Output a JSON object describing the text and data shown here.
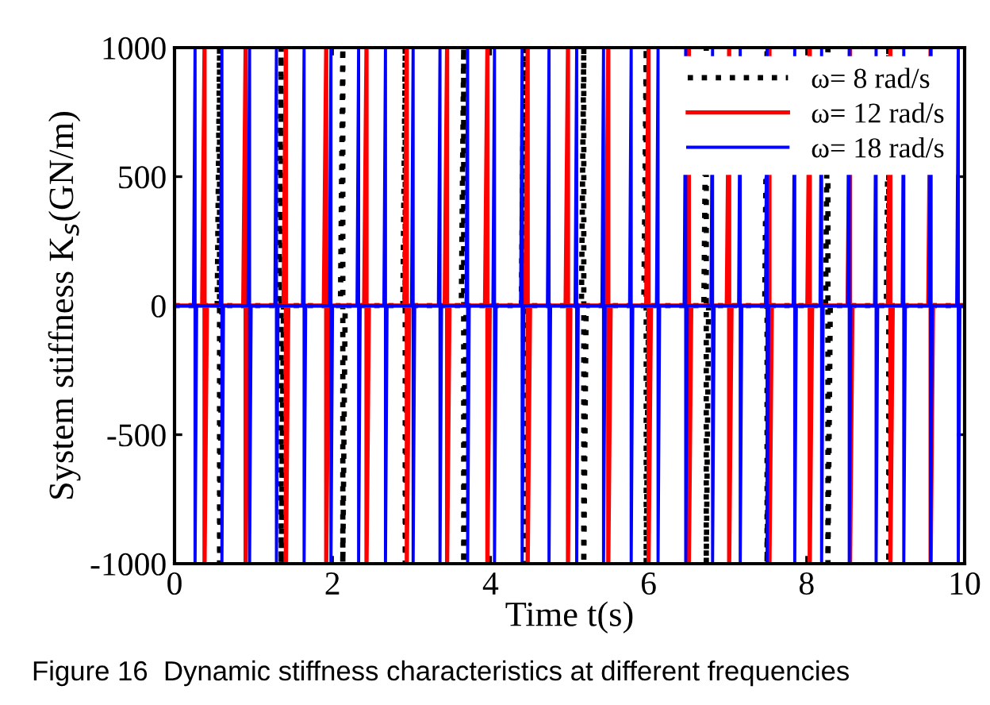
{
  "chart_data": {
    "type": "line",
    "xlabel": "Time t(s)",
    "ylabel": "System stiffness K$_{s}$(GN/m)",
    "xlim": [
      0,
      10
    ],
    "xticks": [
      0,
      2,
      4,
      6,
      8,
      10
    ],
    "ylim": [
      -1000,
      1000
    ],
    "yticks": [
      -1000,
      -500,
      0,
      500,
      1000
    ],
    "grid": false,
    "legend": "top right",
    "marker": "none",
    "annotations": [
      "Figure 16  Dynamic stiffness characteristics at different frequencies"
    ],
    "series": [
      {
        "name": "ω= 8 rad/s",
        "color": "#000000",
        "line_style": "dotted",
        "x": [
          0,
          0.54,
          0.57,
          0.57,
          0.6,
          1.32,
          1.35,
          1.35,
          1.38,
          2.1,
          2.13,
          2.13,
          2.16,
          2.89,
          2.92,
          2.92,
          2.95,
          3.63,
          3.66,
          3.66,
          3.69,
          4.39,
          4.42,
          4.42,
          4.45,
          5.15,
          5.18,
          5.18,
          5.21,
          5.94,
          5.97,
          5.97,
          6.0,
          6.7,
          6.73,
          6.73,
          6.76,
          7.47,
          7.5,
          7.5,
          7.53,
          8.24,
          8.27,
          8.27,
          8.3,
          9.01,
          9.04,
          9.04,
          9.07,
          10
        ],
        "values": [
          0,
          0,
          1000,
          -1000,
          0,
          0,
          1000,
          -1000,
          0,
          0,
          1000,
          -1000,
          0,
          0,
          1000,
          -1000,
          0,
          0,
          1000,
          -1000,
          0,
          0,
          1000,
          -1000,
          0,
          0,
          1000,
          -1000,
          0,
          0,
          1000,
          -1000,
          0,
          0,
          1000,
          -1000,
          0,
          0,
          1000,
          -1000,
          0,
          0,
          1000,
          -1000,
          0,
          0,
          1000,
          -1000,
          0,
          0
        ]
      },
      {
        "name": "ω= 12 rad/s",
        "color": "#ff0000",
        "line_style": "solid",
        "x": [
          0,
          0.35,
          0.38,
          0.38,
          0.41,
          0.87,
          0.9,
          0.9,
          0.93,
          1.38,
          1.41,
          1.41,
          1.44,
          1.89,
          1.92,
          1.92,
          1.95,
          2.4,
          2.43,
          2.43,
          2.46,
          2.91,
          2.94,
          2.94,
          2.97,
          3.42,
          3.45,
          3.45,
          3.48,
          3.93,
          3.96,
          3.96,
          3.99,
          4.44,
          4.47,
          4.47,
          4.5,
          4.95,
          4.98,
          4.98,
          5.01,
          5.46,
          5.49,
          5.49,
          5.52,
          5.97,
          6.0,
          6.0,
          6.03,
          6.48,
          6.51,
          6.51,
          6.54,
          6.99,
          7.02,
          7.02,
          7.05,
          7.5,
          7.53,
          7.53,
          7.56,
          8.01,
          8.04,
          8.04,
          8.07,
          8.52,
          8.55,
          8.55,
          8.58,
          9.03,
          9.06,
          9.06,
          9.09,
          9.54,
          9.57,
          9.57,
          9.6,
          10
        ],
        "values": [
          0,
          0,
          1000,
          -1000,
          0,
          0,
          1000,
          -1000,
          0,
          0,
          1000,
          -1000,
          0,
          0,
          1000,
          -1000,
          0,
          0,
          1000,
          -1000,
          0,
          0,
          1000,
          -1000,
          0,
          0,
          1000,
          -1000,
          0,
          0,
          1000,
          -1000,
          0,
          0,
          1000,
          -1000,
          0,
          0,
          1000,
          -1000,
          0,
          0,
          1000,
          -1000,
          0,
          0,
          1000,
          -1000,
          0,
          0,
          1000,
          -1000,
          0,
          0,
          1000,
          -1000,
          0,
          0,
          1000,
          -1000,
          0,
          0,
          1000,
          -1000,
          0,
          0,
          1000,
          -1000,
          0,
          0,
          1000,
          -1000,
          0,
          0,
          1000,
          -1000,
          0,
          0
        ]
      },
      {
        "name": "ω= 18 rad/s",
        "color": "#0000ff",
        "line_style": "solid",
        "x": [
          0,
          0.24,
          0.26,
          0.26,
          0.28,
          0.58,
          0.6,
          0.6,
          0.62,
          0.93,
          0.95,
          0.95,
          0.97,
          1.27,
          1.29,
          1.29,
          1.31,
          1.62,
          1.64,
          1.64,
          1.66,
          1.96,
          1.98,
          1.98,
          2.0,
          2.31,
          2.33,
          2.33,
          2.35,
          2.65,
          2.67,
          2.67,
          2.69,
          3.0,
          3.02,
          3.02,
          3.04,
          3.34,
          3.36,
          3.36,
          3.38,
          3.69,
          3.71,
          3.71,
          3.73,
          4.03,
          4.05,
          4.05,
          4.07,
          4.38,
          4.4,
          4.4,
          4.42,
          4.72,
          4.74,
          4.74,
          4.76,
          5.07,
          5.09,
          5.09,
          5.11,
          5.41,
          5.43,
          5.43,
          5.45,
          5.76,
          5.78,
          5.78,
          5.8,
          6.1,
          6.12,
          6.12,
          6.14,
          6.45,
          6.47,
          6.47,
          6.49,
          6.79,
          6.81,
          6.81,
          6.83,
          7.14,
          7.16,
          7.16,
          7.18,
          7.48,
          7.5,
          7.5,
          7.52,
          7.83,
          7.85,
          7.85,
          7.87,
          8.17,
          8.19,
          8.19,
          8.21,
          8.52,
          8.54,
          8.54,
          8.56,
          8.86,
          8.88,
          8.88,
          8.9,
          9.21,
          9.23,
          9.23,
          9.25,
          9.55,
          9.57,
          9.57,
          9.59,
          9.9,
          9.92,
          9.92,
          9.94,
          10
        ],
        "values": [
          0,
          0,
          1000,
          -1000,
          0,
          0,
          1000,
          -1000,
          0,
          0,
          1000,
          -1000,
          0,
          0,
          1000,
          -1000,
          0,
          0,
          1000,
          -1000,
          0,
          0,
          1000,
          -1000,
          0,
          0,
          1000,
          -1000,
          0,
          0,
          1000,
          -1000,
          0,
          0,
          1000,
          -1000,
          0,
          0,
          1000,
          -1000,
          0,
          0,
          1000,
          -1000,
          0,
          0,
          1000,
          -1000,
          0,
          0,
          1000,
          -1000,
          0,
          0,
          1000,
          -1000,
          0,
          0,
          1000,
          -1000,
          0,
          0,
          1000,
          -1000,
          0,
          0,
          1000,
          -1000,
          0,
          0,
          1000,
          -1000,
          0,
          0,
          1000,
          -1000,
          0,
          0,
          1000,
          -1000,
          0,
          0,
          1000,
          -1000,
          0,
          0,
          1000,
          -1000,
          0,
          0,
          1000,
          -1000,
          0,
          0,
          1000,
          -1000,
          0,
          0,
          1000,
          -1000,
          0,
          0,
          1000,
          -1000,
          0,
          0,
          1000,
          -1000,
          0,
          0,
          1000,
          -1000,
          0,
          0,
          1000,
          -1000,
          0,
          0
        ]
      }
    ]
  }
}
